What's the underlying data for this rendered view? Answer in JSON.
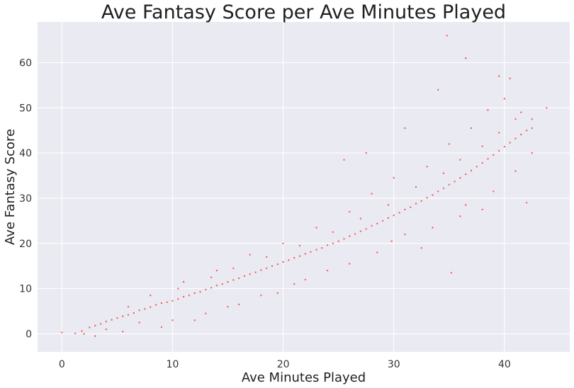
{
  "chart_data": {
    "type": "scatter",
    "title": "Ave Fantasy Score per Ave Minutes Played",
    "xlabel": "Ave Minutes Played",
    "ylabel": "Ave Fantasy Score",
    "xlim": [
      -2.2,
      45.9
    ],
    "ylim": [
      -4.0,
      69.0
    ],
    "x_ticks": [
      0,
      10,
      20,
      30,
      40
    ],
    "y_ticks": [
      0,
      10,
      20,
      30,
      40,
      50,
      60
    ],
    "x_tick_labels": [
      "0",
      "10",
      "20",
      "30",
      "40"
    ],
    "y_tick_labels": [
      "0",
      "10",
      "20",
      "30",
      "40",
      "50",
      "60"
    ],
    "grid": true,
    "legend": "none",
    "colors": {
      "points": "#ff0000",
      "plot_background": "#eaeaf2",
      "grid": "#ffffff"
    },
    "series": [
      {
        "points": [
          [
            0.0,
            0.3
          ],
          [
            1.2,
            0.1
          ],
          [
            1.8,
            0.6
          ],
          [
            2.5,
            1.4
          ],
          [
            3.0,
            1.8
          ],
          [
            3.5,
            2.2
          ],
          [
            4.0,
            2.7
          ],
          [
            4.5,
            3.1
          ],
          [
            5.0,
            3.5
          ],
          [
            5.5,
            3.9
          ],
          [
            6.0,
            4.2
          ],
          [
            6.5,
            4.6
          ],
          [
            7.0,
            5.2
          ],
          [
            7.5,
            5.5
          ],
          [
            8.0,
            5.9
          ],
          [
            8.5,
            6.4
          ],
          [
            9.0,
            6.8
          ],
          [
            9.5,
            7.0
          ],
          [
            10.0,
            7.3
          ],
          [
            10.5,
            7.7
          ],
          [
            11.0,
            8.2
          ],
          [
            11.5,
            8.5
          ],
          [
            12.0,
            9.0
          ],
          [
            12.5,
            9.3
          ],
          [
            13.0,
            9.8
          ],
          [
            13.5,
            10.2
          ],
          [
            14.0,
            10.7
          ],
          [
            14.5,
            11.0
          ],
          [
            15.0,
            11.5
          ],
          [
            15.5,
            11.9
          ],
          [
            16.0,
            12.3
          ],
          [
            16.5,
            12.8
          ],
          [
            17.0,
            13.2
          ],
          [
            17.5,
            13.6
          ],
          [
            18.0,
            14.1
          ],
          [
            18.5,
            14.5
          ],
          [
            19.0,
            15.0
          ],
          [
            19.5,
            15.4
          ],
          [
            20.0,
            15.9
          ],
          [
            20.5,
            16.3
          ],
          [
            21.0,
            16.8
          ],
          [
            21.5,
            17.2
          ],
          [
            22.0,
            17.7
          ],
          [
            22.5,
            18.1
          ],
          [
            23.0,
            18.6
          ],
          [
            23.5,
            19.0
          ],
          [
            24.0,
            19.6
          ],
          [
            24.5,
            20.0
          ],
          [
            25.0,
            20.5
          ],
          [
            25.5,
            21.0
          ],
          [
            26.0,
            21.6
          ],
          [
            26.5,
            22.1
          ],
          [
            27.0,
            22.7
          ],
          [
            27.5,
            23.2
          ],
          [
            28.0,
            23.9
          ],
          [
            28.5,
            24.4
          ],
          [
            29.0,
            25.0
          ],
          [
            29.5,
            25.6
          ],
          [
            30.0,
            26.2
          ],
          [
            30.5,
            26.8
          ],
          [
            31.0,
            27.5
          ],
          [
            31.5,
            28.0
          ],
          [
            32.0,
            28.8
          ],
          [
            32.5,
            29.4
          ],
          [
            33.0,
            30.1
          ],
          [
            33.5,
            30.7
          ],
          [
            34.0,
            31.5
          ],
          [
            34.5,
            32.2
          ],
          [
            35.0,
            33.0
          ],
          [
            35.5,
            33.7
          ],
          [
            36.0,
            34.5
          ],
          [
            36.5,
            35.3
          ],
          [
            37.0,
            36.1
          ],
          [
            37.5,
            37.0
          ],
          [
            38.0,
            37.8
          ],
          [
            38.5,
            38.7
          ],
          [
            39.0,
            39.6
          ],
          [
            39.5,
            40.5
          ],
          [
            40.0,
            41.4
          ],
          [
            40.5,
            42.3
          ],
          [
            41.0,
            43.2
          ],
          [
            41.5,
            44.1
          ],
          [
            42.0,
            45.0
          ],
          [
            42.5,
            45.5
          ],
          [
            34.8,
            66.0
          ],
          [
            36.5,
            61.0
          ],
          [
            39.5,
            57.0
          ],
          [
            40.5,
            56.5
          ],
          [
            43.8,
            50.0
          ],
          [
            34.0,
            54.0
          ],
          [
            35.2,
            13.5
          ],
          [
            31.0,
            45.5
          ],
          [
            42.0,
            29.0
          ],
          [
            27.5,
            40.0
          ],
          [
            25.5,
            38.5
          ],
          [
            32.5,
            19.0
          ],
          [
            36.0,
            26.0
          ],
          [
            38.0,
            27.5
          ],
          [
            29.8,
            20.5
          ],
          [
            22.0,
            12.0
          ],
          [
            19.5,
            9.0
          ],
          [
            16.0,
            6.5
          ],
          [
            12.0,
            3.0
          ],
          [
            9.0,
            1.5
          ],
          [
            5.5,
            0.5
          ],
          [
            3.0,
            -0.5
          ],
          [
            11.0,
            11.5
          ],
          [
            14.0,
            14.0
          ],
          [
            17.0,
            17.5
          ],
          [
            20.0,
            20.0
          ],
          [
            23.0,
            23.5
          ],
          [
            26.0,
            27.0
          ],
          [
            28.0,
            31.0
          ],
          [
            30.0,
            34.5
          ],
          [
            33.0,
            37.0
          ],
          [
            35.0,
            42.0
          ],
          [
            37.0,
            45.5
          ],
          [
            38.5,
            49.5
          ],
          [
            40.0,
            52.0
          ],
          [
            41.5,
            49.0
          ],
          [
            42.5,
            40.0
          ],
          [
            41.0,
            36.0
          ],
          [
            39.0,
            31.5
          ],
          [
            36.5,
            28.5
          ],
          [
            33.5,
            23.5
          ],
          [
            31.0,
            22.0
          ],
          [
            28.5,
            18.0
          ],
          [
            26.0,
            15.5
          ],
          [
            24.0,
            14.0
          ],
          [
            21.0,
            11.0
          ],
          [
            18.0,
            8.5
          ],
          [
            15.0,
            6.0
          ],
          [
            13.0,
            4.5
          ],
          [
            10.0,
            3.0
          ],
          [
            7.0,
            2.5
          ],
          [
            4.0,
            1.0
          ],
          [
            2.0,
            0.0
          ],
          [
            6.0,
            6.0
          ],
          [
            8.0,
            8.5
          ],
          [
            10.5,
            10.0
          ],
          [
            13.5,
            12.5
          ],
          [
            15.5,
            14.5
          ],
          [
            18.5,
            17.0
          ],
          [
            21.5,
            19.5
          ],
          [
            24.5,
            22.5
          ],
          [
            27.0,
            25.5
          ],
          [
            29.5,
            28.5
          ],
          [
            32.0,
            32.5
          ],
          [
            34.5,
            35.5
          ],
          [
            36.0,
            38.5
          ],
          [
            38.0,
            41.5
          ],
          [
            39.5,
            44.5
          ],
          [
            41.0,
            47.5
          ],
          [
            42.5,
            47.5
          ]
        ]
      }
    ]
  }
}
